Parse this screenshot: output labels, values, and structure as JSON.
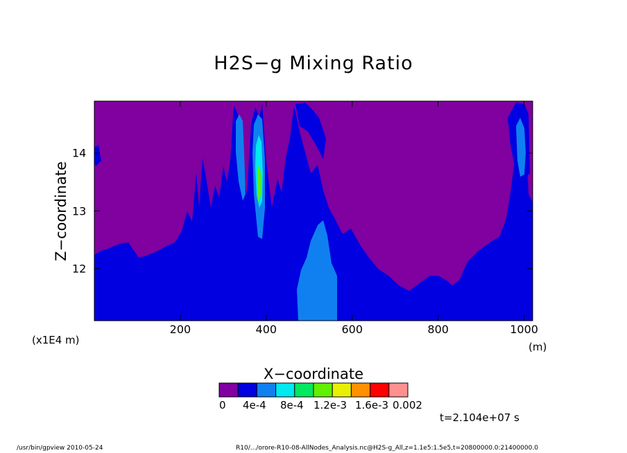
{
  "chart_data": {
    "type": "heatmap",
    "title": "H2S−g Mixing Ratio",
    "xlabel": "X−coordinate",
    "ylabel": "Z−coordinate",
    "x_scale_note": "(x1E4 m)",
    "x_unit_note": "(m)",
    "xlim": [
      0,
      1020
    ],
    "ylim": [
      11.1,
      14.9
    ],
    "x_ticks": [
      200,
      400,
      600,
      800,
      1000
    ],
    "x_tick_labels": [
      "200",
      "400",
      "600",
      "800",
      "1000"
    ],
    "y_ticks": [
      12,
      13,
      14
    ],
    "y_tick_labels": [
      "12",
      "13",
      "14"
    ],
    "colorbar": {
      "colors": [
        "#8000a0",
        "#0000e0",
        "#1080f0",
        "#00e8f0",
        "#00e860",
        "#60f000",
        "#e8f000",
        "#ff9000",
        "#ff0000",
        "#ff9090"
      ],
      "labels": [
        "0",
        "4e-4",
        "8e-4",
        "1.2e-3",
        "1.6e-3",
        "0.002"
      ]
    },
    "time_annotation": "t=2.104e+07 s",
    "levels": {
      "background": "#8000a0",
      "low": "#0000e0",
      "mid": "#1080f0",
      "high": "#00e8f0",
      "peak": "#60f000"
    }
  },
  "footer": {
    "left": "/usr/bin/gpview  2010-05-24",
    "right": "R10/.../orore-R10-08-AllNodes_Analysis.nc@H2S-g_All,z=1.1e5:1.5e5,t=20800000.0:21400000.0"
  }
}
